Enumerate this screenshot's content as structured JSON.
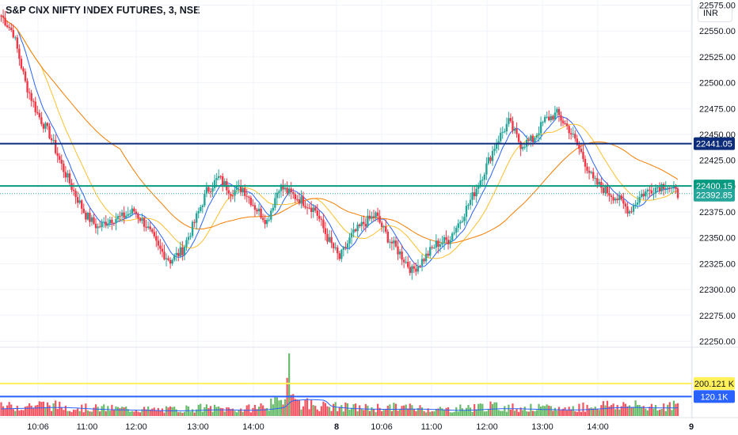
{
  "header": {
    "symbol_title": "S&P CNX NIFTY INDEX FUTURES, 3, NSE",
    "currency": "INR"
  },
  "colors": {
    "up": "#26a69a",
    "up_volume": "#4caf50",
    "down": "#f23645",
    "ma_fast": "#2962ff",
    "ma_mid": "#fbc02d",
    "ma_slow": "#f57c00",
    "line_dark": "#0d2d7a",
    "line_teal": "#089981",
    "line_yellow": "#fff157",
    "line_blue": "#2962ff",
    "grid": "#f0f3fa"
  },
  "chart_data": {
    "type": "candlestick",
    "price_axis": {
      "ticks": [
        "22575.00",
        "22550.00",
        "22525.00",
        "22500.00",
        "22475.00",
        "22450.00",
        "22425.00",
        "22400.00",
        "22375.00",
        "22350.00",
        "22325.00",
        "22300.00",
        "22275.00",
        "22250.00"
      ],
      "ylim": [
        22245,
        22580
      ]
    },
    "time_axis": {
      "ticks": [
        "10:06",
        "11:00",
        "12:00",
        "13:00",
        "14:00",
        "8",
        "10:06",
        "11:00",
        "12:00",
        "13:00",
        "14:00",
        "9"
      ]
    },
    "price_labels": [
      {
        "name": "horizontal-line-upper",
        "value": "22441.05"
      },
      {
        "name": "horizontal-line-teal",
        "value": "22400.15"
      },
      {
        "name": "last-price",
        "value": "22392.85"
      }
    ],
    "volume_labels": [
      {
        "name": "volume-level-yellow",
        "value": "200.121 K"
      },
      {
        "name": "volume-level-blue",
        "value": "120.1K"
      }
    ],
    "volume_ylim": [
      0,
      380000
    ],
    "keypoints": [
      [
        0,
        22565
      ],
      [
        6,
        22548
      ],
      [
        12,
        22500
      ],
      [
        18,
        22470
      ],
      [
        24,
        22450
      ],
      [
        30,
        22420
      ],
      [
        36,
        22395
      ],
      [
        42,
        22372
      ],
      [
        48,
        22360
      ],
      [
        54,
        22368
      ],
      [
        60,
        22370
      ],
      [
        66,
        22376
      ],
      [
        72,
        22362
      ],
      [
        78,
        22340
      ],
      [
        84,
        22328
      ],
      [
        90,
        22338
      ],
      [
        96,
        22365
      ],
      [
        102,
        22395
      ],
      [
        108,
        22408
      ],
      [
        114,
        22395
      ],
      [
        120,
        22398
      ],
      [
        126,
        22380
      ],
      [
        132,
        22366
      ],
      [
        138,
        22400
      ],
      [
        144,
        22392
      ],
      [
        150,
        22385
      ],
      [
        156,
        22377
      ],
      [
        162,
        22350
      ],
      [
        168,
        22330
      ],
      [
        174,
        22352
      ],
      [
        180,
        22364
      ],
      [
        186,
        22372
      ],
      [
        192,
        22350
      ],
      [
        198,
        22335
      ],
      [
        204,
        22318
      ],
      [
        210,
        22330
      ],
      [
        216,
        22344
      ],
      [
        222,
        22348
      ],
      [
        228,
        22367
      ],
      [
        234,
        22390
      ],
      [
        240,
        22415
      ],
      [
        246,
        22443
      ],
      [
        252,
        22462
      ],
      [
        258,
        22440
      ],
      [
        264,
        22445
      ],
      [
        270,
        22464
      ],
      [
        276,
        22470
      ],
      [
        282,
        22455
      ],
      [
        288,
        22432
      ],
      [
        294,
        22405
      ],
      [
        300,
        22396
      ],
      [
        306,
        22388
      ],
      [
        312,
        22376
      ],
      [
        318,
        22392
      ],
      [
        324,
        22398
      ],
      [
        330,
        22402
      ],
      [
        336,
        22392
      ]
    ],
    "volume_keypoints": [
      [
        0,
        55000
      ],
      [
        20,
        70000
      ],
      [
        40,
        50000
      ],
      [
        60,
        45000
      ],
      [
        80,
        38000
      ],
      [
        100,
        50000
      ],
      [
        120,
        40000
      ],
      [
        140,
        85000
      ],
      [
        143,
        380000
      ],
      [
        146,
        90000
      ],
      [
        160,
        60000
      ],
      [
        180,
        50000
      ],
      [
        200,
        55000
      ],
      [
        220,
        40000
      ],
      [
        240,
        60000
      ],
      [
        260,
        50000
      ],
      [
        280,
        45000
      ],
      [
        300,
        70000
      ],
      [
        320,
        60000
      ],
      [
        336,
        65000
      ]
    ]
  }
}
